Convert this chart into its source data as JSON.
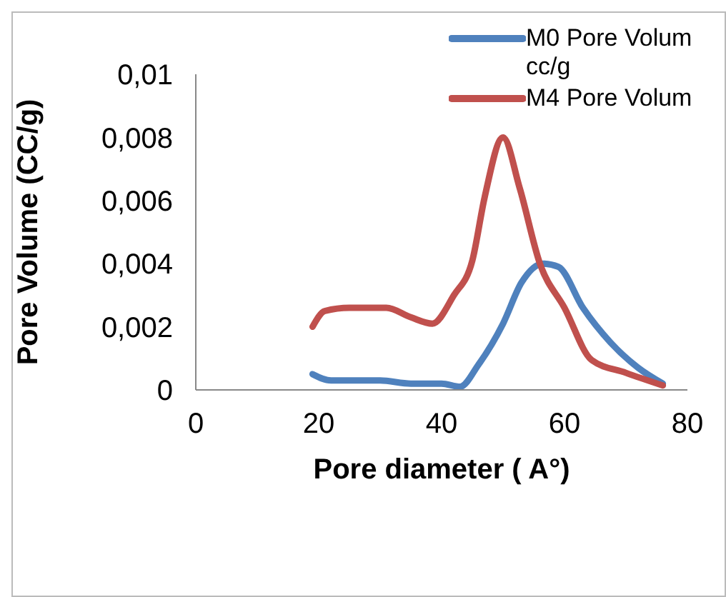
{
  "chart_data": {
    "type": "line",
    "xlabel": "Pore diameter ( A°)",
    "ylabel": "Pore Volume (CC/g)",
    "xlim": [
      0,
      80
    ],
    "xticks": [
      0,
      20,
      40,
      60,
      80
    ],
    "ylim": [
      0,
      0.01
    ],
    "yticks": [
      {
        "value": 0,
        "label": "0"
      },
      {
        "value": 0.002,
        "label": "0,002"
      },
      {
        "value": 0.004,
        "label": "0,004"
      },
      {
        "value": 0.006,
        "label": "0,006"
      },
      {
        "value": 0.008,
        "label": "0,008"
      },
      {
        "value": 0.01,
        "label": "0,01"
      }
    ],
    "legend": "top right",
    "marker": "none",
    "line_style": "solid",
    "series": [
      {
        "name": "M0 Pore Volum cc/g",
        "color": "#4f81bd",
        "x": [
          19,
          22,
          30,
          35,
          40,
          43,
          46,
          50,
          53,
          56.5,
          59,
          63,
          67.5,
          72,
          76
        ],
        "values": [
          0.0005,
          0.0003,
          0.0003,
          0.0002,
          0.0002,
          0.0001,
          0.0008,
          0.0021,
          0.0034,
          0.004,
          0.0039,
          0.0026,
          0.0015,
          0.0007,
          0.0002
        ]
      },
      {
        "name": "M4 Pore Volum",
        "color": "#c0504d",
        "x": [
          19,
          21,
          25,
          31,
          35,
          38.5,
          42,
          45,
          47,
          50,
          52.7,
          56,
          60,
          64.4,
          70,
          76
        ],
        "values": [
          0.002,
          0.0025,
          0.0026,
          0.0026,
          0.0023,
          0.0021,
          0.003,
          0.0041,
          0.0061,
          0.008,
          0.0064,
          0.004,
          0.0026,
          0.00095,
          0.00054,
          0.00014
        ]
      }
    ]
  }
}
